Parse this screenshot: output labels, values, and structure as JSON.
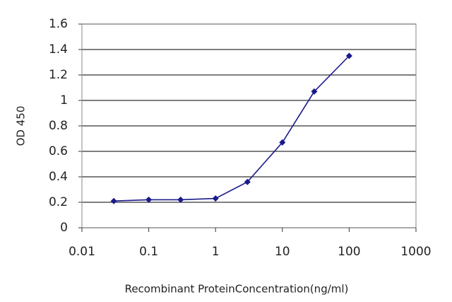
{
  "chart_data": {
    "type": "line",
    "x_label": "Recombinant ProteinConcentration(ng/ml)",
    "y_label": "OD 450",
    "x": [
      0.03,
      0.1,
      0.3,
      1,
      3,
      10,
      30,
      100
    ],
    "series": [
      {
        "name": "OD",
        "color": "#1a1a8c",
        "values": [
          0.21,
          0.22,
          0.22,
          0.23,
          0.36,
          0.67,
          1.07,
          1.35
        ]
      }
    ],
    "xlim": [
      0.01,
      1000
    ],
    "xticks": [
      0.01,
      0.1,
      1,
      10,
      100,
      1000
    ],
    "x_log": true,
    "ylim": [
      0,
      1.6
    ],
    "yticks": [
      0,
      0.2,
      0.4,
      0.6,
      0.8,
      1,
      1.2,
      1.4,
      1.6
    ],
    "grid": true
  }
}
